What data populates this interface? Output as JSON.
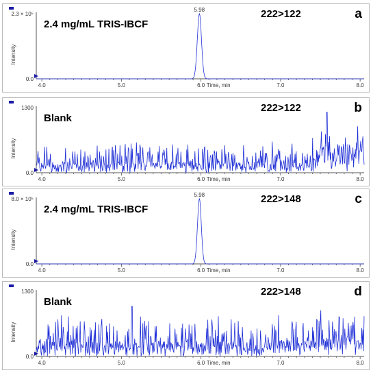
{
  "chart_data": [
    {
      "type": "line",
      "panel_letter": "a",
      "sample_label": "2.4 mg/mL TRIS-IBCF",
      "transition": "222>122",
      "ylabel": "Intensity",
      "xlabel": "Time, min",
      "y_max_label": "2.3 × 10⁵",
      "y_zero_label": "0.0",
      "y_max": 230000,
      "xlim": [
        3.93,
        8.05
      ],
      "x_ticks": [
        "4.0",
        "5.0",
        "6.0",
        "7.0",
        "8.0"
      ],
      "peak": {
        "label": "5.98",
        "x": 5.98,
        "y": 230000,
        "width": 0.06
      },
      "color": "#1f2fd6"
    },
    {
      "type": "line",
      "panel_letter": "b",
      "sample_label": "Blank",
      "transition": "222>122",
      "ylabel": "Intensity",
      "xlabel": "Time, min",
      "y_max_label": "1300",
      "y_zero_label": "0.0",
      "y_max": 1300,
      "xlim": [
        3.93,
        8.05
      ],
      "x_ticks": [
        "4.0",
        "5.0",
        "6.0",
        "7.0",
        "8.0"
      ],
      "noise": {
        "seed": 11,
        "base": 220,
        "amp": 420,
        "rise_at": 7.4,
        "rise_amp": 380,
        "spike": {
          "x": 7.58,
          "y": 1210
        }
      },
      "color": "#1f2fd6"
    },
    {
      "type": "line",
      "panel_letter": "c",
      "sample_label": "2.4 mg/mL TRIS-IBCF",
      "transition": "222>148",
      "ylabel": "Intensity",
      "xlabel": "Time, min",
      "y_max_label": "8.0 × 10⁵",
      "y_zero_label": "0.0",
      "y_max": 800000,
      "xlim": [
        3.93,
        8.05
      ],
      "x_ticks": [
        "4.0",
        "5.0",
        "6.0",
        "7.0",
        "8.0"
      ],
      "peak": {
        "label": "5.98",
        "x": 5.98,
        "y": 800000,
        "width": 0.055
      },
      "color": "#1f2fd6"
    },
    {
      "type": "line",
      "panel_letter": "d",
      "sample_label": "Blank",
      "transition": "222>148",
      "ylabel": "Intensity",
      "xlabel": "Time, min",
      "y_max_label": "1300",
      "y_zero_label": "0.0",
      "y_max": 1300,
      "xlim": [
        3.93,
        8.05
      ],
      "x_ticks": [
        "4.0",
        "5.0",
        "6.0",
        "7.0",
        "8.0"
      ],
      "noise": {
        "seed": 29,
        "base": 300,
        "amp": 560,
        "rise_at": 6.8,
        "rise_amp": 150,
        "spike": {
          "x": 5.13,
          "y": 1000
        }
      },
      "color": "#1f2fd6"
    }
  ]
}
